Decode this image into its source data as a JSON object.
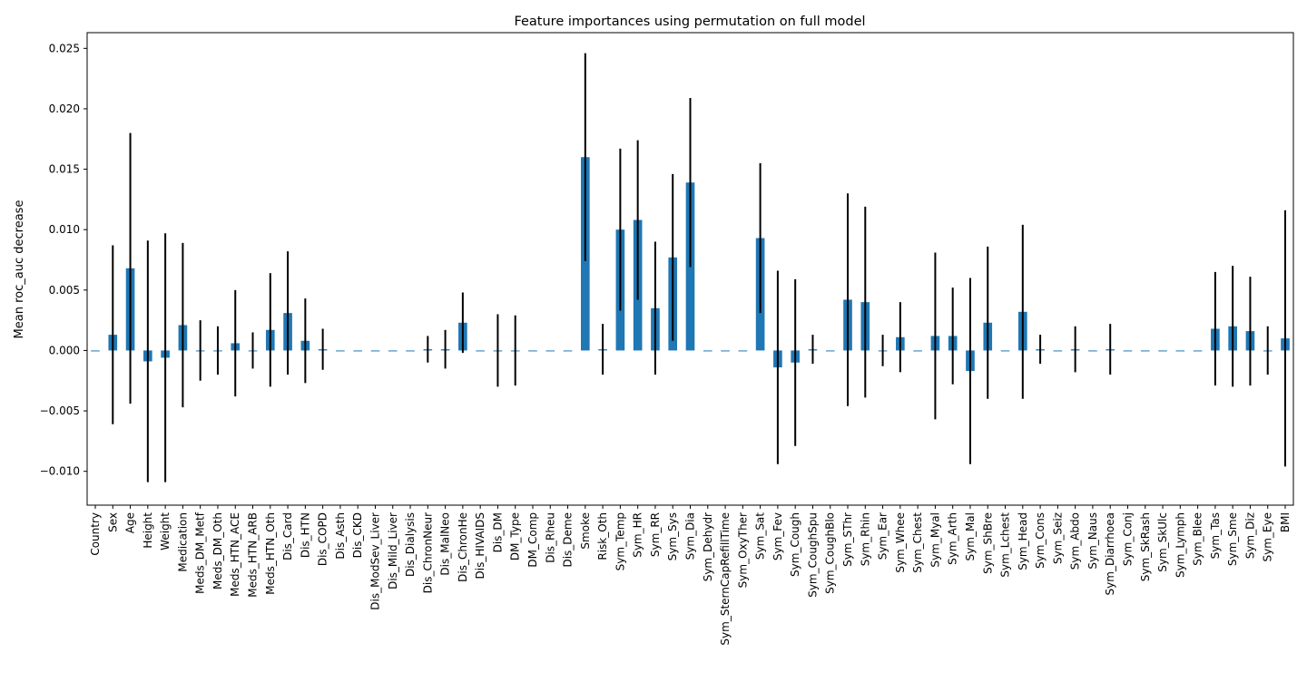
{
  "chart_data": {
    "type": "bar",
    "title": "Feature importances using permutation on full model",
    "xlabel": "",
    "ylabel": "Mean roc_auc decrease",
    "ylim": [
      -0.0128,
      0.0263
    ],
    "yticks": [
      -0.01,
      -0.005,
      0.0,
      0.005,
      0.01,
      0.015,
      0.02,
      0.025
    ],
    "ytick_labels": [
      "−0.010",
      "−0.005",
      "0.000",
      "0.005",
      "0.010",
      "0.015",
      "0.020",
      "0.025"
    ],
    "grid": false,
    "legend": "none",
    "bar_color": "#1f77b4",
    "error_color": "#000000",
    "categories": [
      "Country",
      "Sex",
      "Age",
      "Height",
      "Weight",
      "Medication",
      "Meds_DM_Metf",
      "Meds_DM_Oth",
      "Meds_HTN_ACE",
      "Meds_HTN_ARB",
      "Meds_HTN_Oth",
      "Dis_Card",
      "Dis_HTN",
      "Dis_COPD",
      "Dis_Asth",
      "Dis_CKD",
      "Dis_ModSev_Liver",
      "Dis_Mild_Liver",
      "Dis_Dialysis",
      "Dis_ChronNeur",
      "Dis_MalNeo",
      "Dis_ChronHe",
      "Dis_HIVAIDS",
      "Dis_DM",
      "DM_Type",
      "DM_Comp",
      "Dis_Rheu",
      "Dis_Deme",
      "Smoke",
      "Risk_Oth",
      "Sym_Temp",
      "Sym_HR",
      "Sym_RR",
      "Sym_Sys",
      "Sym_Dia",
      "Sym_Dehydr",
      "Sym_SternCapRefillTime",
      "Sym_OxyTher",
      "Sym_Sat",
      "Sym_Fev",
      "Sym_Cough",
      "Sym_CoughSpu",
      "Sym_CoughBlo",
      "Sym_SThr",
      "Sym_Rhin",
      "Sym_Ear",
      "Sym_Whee",
      "Sym_Chest",
      "Sym_Myal",
      "Sym_Arth",
      "Sym_Mal",
      "Sym_ShBre",
      "Sym_Lchest",
      "Sym_Head",
      "Sym_Cons",
      "Sym_Seiz",
      "Sym_Abdo",
      "Sym_Naus",
      "Sym_Diarrhoea",
      "Sym_Conj",
      "Sym_SkRash",
      "Sym_SkUlc",
      "Sym_Lymph",
      "Sym_Blee",
      "Sym_Tas",
      "Sym_Sme",
      "Sym_Diz",
      "Sym_Eye",
      "BMI"
    ],
    "values": [
      0,
      0.0013,
      0.0068,
      -0.0009,
      -0.0006,
      0.0021,
      0,
      0,
      0.0006,
      0,
      0.0017,
      0.0031,
      0.0008,
      0.0001,
      0,
      0,
      0,
      0,
      0,
      0.0001,
      0.0001,
      0.0023,
      0,
      0,
      0,
      0,
      0,
      0,
      0.016,
      0.0001,
      0.01,
      0.0108,
      0.0035,
      0.0077,
      0.0139,
      0,
      0,
      0,
      0.0093,
      -0.0014,
      -0.001,
      0.0001,
      0,
      0.0042,
      0.004,
      0,
      0.0011,
      0,
      0.0012,
      0.0012,
      -0.0017,
      0.0023,
      0,
      0.0032,
      0.0001,
      0,
      0.0001,
      0,
      0.0001,
      0,
      0,
      0,
      0,
      0,
      0.0018,
      0.002,
      0.0016,
      0,
      0.001
    ],
    "errors": [
      0,
      0.0074,
      0.0112,
      0.01,
      0.0103,
      0.0068,
      0.0025,
      0.002,
      0.0044,
      0.0015,
      0.0047,
      0.0051,
      0.0035,
      0.0017,
      0,
      0,
      0,
      0,
      0,
      0.0011,
      0.0016,
      0.0025,
      0,
      0.003,
      0.0029,
      0,
      0,
      0,
      0.0086,
      0.0021,
      0.0067,
      0.0066,
      0.0055,
      0.0069,
      0.007,
      0,
      0,
      0,
      0.0062,
      0.008,
      0.0069,
      0.0012,
      0,
      0.0088,
      0.0079,
      0.0013,
      0.0029,
      0,
      0.0069,
      0.004,
      0.0077,
      0.0063,
      0,
      0.0072,
      0.0012,
      0,
      0.0019,
      0,
      0.0021,
      0,
      0,
      0,
      0,
      0,
      0.0047,
      0.005,
      0.0045,
      0.002,
      0.0106
    ]
  }
}
